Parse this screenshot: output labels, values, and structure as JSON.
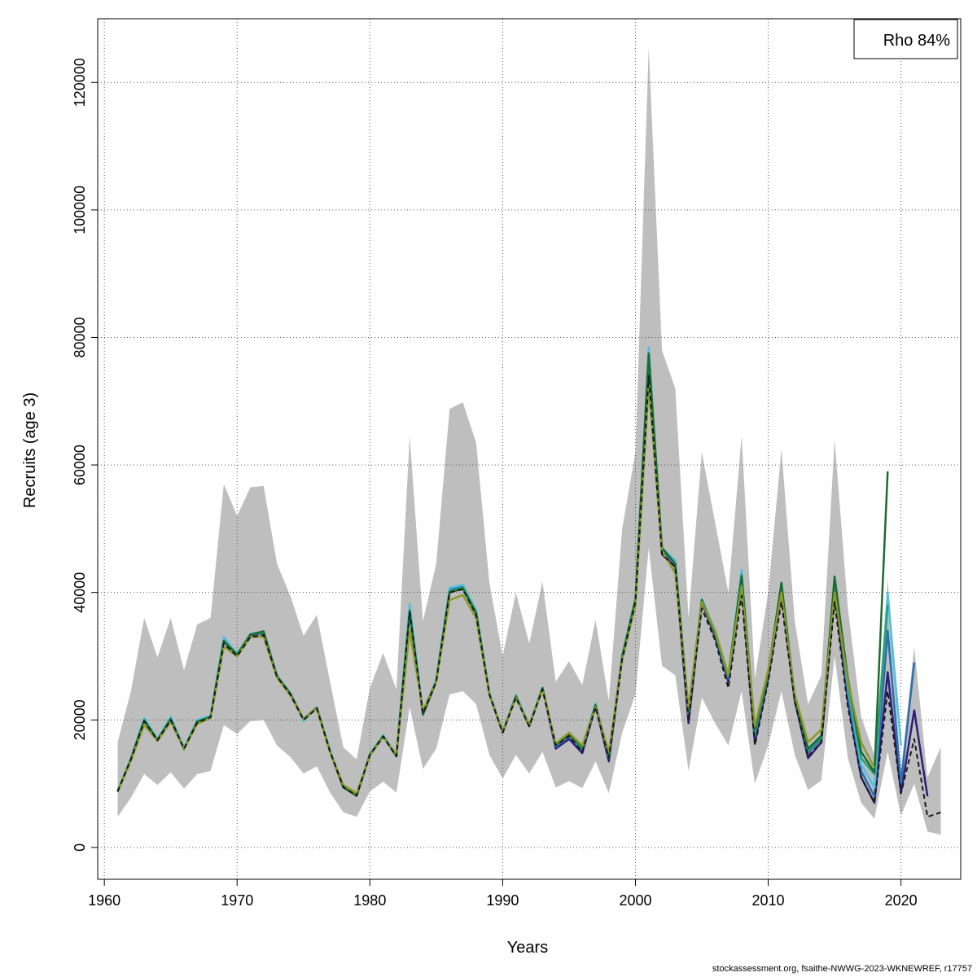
{
  "chart_data": {
    "type": "line",
    "title": "",
    "xlabel": "Years",
    "ylabel": "Recruits (age 3)",
    "xlim": [
      1959.5,
      2024.5
    ],
    "ylim": [
      -5000,
      130000
    ],
    "x_ticks": [
      1960,
      1970,
      1980,
      1990,
      2000,
      2010,
      2020
    ],
    "y_ticks": [
      0,
      20000,
      40000,
      60000,
      80000,
      100000,
      120000
    ],
    "grid": true,
    "legend": {
      "position": "top-right",
      "text": "Rho 84%"
    },
    "confidence_band": {
      "x": [
        1961,
        1962,
        1963,
        1964,
        1965,
        1966,
        1967,
        1968,
        1969,
        1970,
        1971,
        1972,
        1973,
        1974,
        1975,
        1976,
        1977,
        1978,
        1979,
        1980,
        1981,
        1982,
        1983,
        1984,
        1985,
        1986,
        1987,
        1988,
        1989,
        1990,
        1991,
        1992,
        1993,
        1994,
        1995,
        1996,
        1997,
        1998,
        1999,
        2000,
        2001,
        2002,
        2003,
        2004,
        2005,
        2006,
        2007,
        2008,
        2009,
        2010,
        2011,
        2012,
        2013,
        2014,
        2015,
        2016,
        2017,
        2018,
        2019,
        2020,
        2021,
        2022,
        2023
      ],
      "lower": [
        4800,
        7800,
        11500,
        9800,
        11800,
        9200,
        11500,
        12000,
        19200,
        17800,
        19800,
        20000,
        16000,
        14200,
        11600,
        12700,
        8600,
        5500,
        4800,
        8800,
        10300,
        8600,
        22000,
        12300,
        15500,
        24000,
        24500,
        22500,
        14500,
        10800,
        14500,
        11600,
        15000,
        9400,
        10400,
        9300,
        13500,
        8500,
        18000,
        24000,
        47000,
        28500,
        27000,
        12000,
        23500,
        19500,
        16000,
        24500,
        10000,
        16000,
        24500,
        14500,
        9000,
        10500,
        30000,
        14000,
        7000,
        4500,
        15000,
        5000,
        10000,
        2500,
        2000
      ],
      "upper": [
        16500,
        24500,
        36000,
        29800,
        36000,
        27800,
        35000,
        36000,
        57000,
        52000,
        56500,
        56700,
        44500,
        39500,
        33200,
        36500,
        26000,
        15700,
        13800,
        25000,
        30500,
        24800,
        64500,
        35500,
        44500,
        68800,
        69800,
        63500,
        41500,
        30000,
        40000,
        32000,
        41700,
        26000,
        29200,
        25500,
        35700,
        23000,
        50000,
        62000,
        125500,
        78000,
        72000,
        36000,
        62000,
        51000,
        40000,
        64500,
        26500,
        40000,
        62500,
        35500,
        22500,
        27000,
        64000,
        37500,
        20500,
        14500,
        42000,
        12000,
        31500,
        11000,
        15700
      ]
    },
    "series": [
      {
        "color": "#1a1a1a",
        "dash": "6,4",
        "x": [
          1961,
          1962,
          1963,
          1964,
          1965,
          1966,
          1967,
          1968,
          1969,
          1970,
          1971,
          1972,
          1973,
          1974,
          1975,
          1976,
          1977,
          1978,
          1979,
          1980,
          1981,
          1982,
          1983,
          1984,
          1985,
          1986,
          1987,
          1988,
          1989,
          1990,
          1991,
          1992,
          1993,
          1994,
          1995,
          1996,
          1997,
          1998,
          1999,
          2000,
          2001,
          2002,
          2003,
          2004,
          2005,
          2006,
          2007,
          2008,
          2009,
          2010,
          2011,
          2012,
          2013,
          2014,
          2015,
          2016,
          2017,
          2018,
          2019,
          2020,
          2021,
          2022,
          2023
        ],
        "values": [
          8800,
          13800,
          19800,
          16800,
          20000,
          15500,
          19600,
          20400,
          32000,
          30000,
          33000,
          33300,
          26800,
          24000,
          20000,
          21800,
          15000,
          9500,
          8100,
          14500,
          17400,
          14300,
          37000,
          21000,
          26000,
          40000,
          40500,
          36500,
          24000,
          18000,
          23500,
          19000,
          24800,
          16000,
          17500,
          15000,
          22000,
          14000,
          29500,
          38500,
          74000,
          46000,
          44000,
          20000,
          37500,
          32500,
          25000,
          39500,
          16000,
          26000,
          38500,
          22800,
          14300,
          16500,
          38500,
          22000,
          11000,
          7000,
          24500,
          8500,
          17000,
          4800,
          5500
        ]
      },
      {
        "color": "#2e1e7a",
        "x": [
          1961,
          1962,
          1963,
          1964,
          1965,
          1966,
          1967,
          1968,
          1969,
          1970,
          1971,
          1972,
          1973,
          1974,
          1975,
          1976,
          1977,
          1978,
          1979,
          1980,
          1981,
          1982,
          1983,
          1984,
          1985,
          1986,
          1987,
          1988,
          1989,
          1990,
          1991,
          1992,
          1993,
          1994,
          1995,
          1996,
          1997,
          1998,
          1999,
          2000,
          2001,
          2002,
          2003,
          2004,
          2005,
          2006,
          2007,
          2008,
          2009,
          2010,
          2011,
          2012,
          2013,
          2014,
          2015,
          2016,
          2017,
          2018,
          2019,
          2020,
          2021,
          2022
        ],
        "values": [
          8800,
          13900,
          19900,
          16900,
          20100,
          15500,
          19700,
          20500,
          32300,
          30200,
          33300,
          33600,
          26900,
          24100,
          20100,
          21900,
          15100,
          9500,
          8100,
          14600,
          17500,
          14300,
          37500,
          21000,
          26200,
          40300,
          40800,
          36800,
          24100,
          18100,
          23700,
          19100,
          25000,
          15500,
          17000,
          14800,
          22200,
          13500,
          29800,
          38800,
          76000,
          46000,
          44000,
          19500,
          38500,
          33000,
          26000,
          41000,
          16500,
          26500,
          40000,
          23000,
          14000,
          16500,
          40000,
          23000,
          11000,
          7000,
          27500,
          8500,
          21500,
          8000
        ]
      },
      {
        "color": "#2a6fb0",
        "x": [
          1961,
          1962,
          1963,
          1964,
          1965,
          1966,
          1967,
          1968,
          1969,
          1970,
          1971,
          1972,
          1973,
          1974,
          1975,
          1976,
          1977,
          1978,
          1979,
          1980,
          1981,
          1982,
          1983,
          1984,
          1985,
          1986,
          1987,
          1988,
          1989,
          1990,
          1991,
          1992,
          1993,
          1994,
          1995,
          1996,
          1997,
          1998,
          1999,
          2000,
          2001,
          2002,
          2003,
          2004,
          2005,
          2006,
          2007,
          2008,
          2009,
          2010,
          2011,
          2012,
          2013,
          2014,
          2015,
          2016,
          2017,
          2018,
          2019,
          2020,
          2021
        ],
        "values": [
          8800,
          13900,
          20000,
          16900,
          20200,
          15500,
          19800,
          20500,
          32600,
          30300,
          33400,
          33700,
          26900,
          24200,
          20000,
          22000,
          15100,
          9500,
          8200,
          14600,
          17600,
          14400,
          37800,
          21000,
          26300,
          40500,
          41000,
          37000,
          24200,
          18100,
          23800,
          19200,
          25000,
          15800,
          17400,
          15200,
          22400,
          14000,
          30000,
          39000,
          77500,
          46500,
          44500,
          20500,
          38800,
          33500,
          26500,
          42500,
          17500,
          27000,
          41000,
          23500,
          14800,
          17000,
          41500,
          24000,
          12000,
          8000,
          34000,
          10000,
          29000
        ]
      },
      {
        "color": "#4fc0e0",
        "x": [
          1961,
          1962,
          1963,
          1964,
          1965,
          1966,
          1967,
          1968,
          1969,
          1970,
          1971,
          1972,
          1973,
          1974,
          1975,
          1976,
          1977,
          1978,
          1979,
          1980,
          1981,
          1982,
          1983,
          1984,
          1985,
          1986,
          1987,
          1988,
          1989,
          1990,
          1991,
          1992,
          1993,
          1994,
          1995,
          1996,
          1997,
          1998,
          1999,
          2000,
          2001,
          2002,
          2003,
          2004,
          2005,
          2006,
          2007,
          2008,
          2009,
          2010,
          2011,
          2012,
          2013,
          2014,
          2015,
          2016,
          2017,
          2018,
          2019,
          2020
        ],
        "values": [
          8900,
          14000,
          20300,
          17000,
          20500,
          15600,
          20000,
          20700,
          33000,
          30400,
          33500,
          33800,
          27000,
          24300,
          19800,
          22000,
          15200,
          9600,
          8200,
          14700,
          17600,
          14500,
          38200,
          21200,
          26400,
          40700,
          41200,
          37200,
          24300,
          18200,
          23900,
          19300,
          25100,
          16000,
          17800,
          15600,
          22600,
          14300,
          30200,
          39200,
          78500,
          47000,
          45000,
          21000,
          39000,
          34000,
          27000,
          43500,
          18000,
          27500,
          41500,
          24000,
          15500,
          17500,
          42500,
          25000,
          13000,
          9500,
          40000,
          16000
        ]
      },
      {
        "color": "#2a9d6e",
        "x": [
          1961,
          1962,
          1963,
          1964,
          1965,
          1966,
          1967,
          1968,
          1969,
          1970,
          1971,
          1972,
          1973,
          1974,
          1975,
          1976,
          1977,
          1978,
          1979,
          1980,
          1981,
          1982,
          1983,
          1984,
          1985,
          1986,
          1987,
          1988,
          1989,
          1990,
          1991,
          1992,
          1993,
          1994,
          1995,
          1996,
          1997,
          1998,
          1999,
          2000,
          2001,
          2002,
          2003,
          2004,
          2005,
          2006,
          2007,
          2008,
          2009,
          2010,
          2011,
          2012,
          2013,
          2014,
          2015,
          2016,
          2017,
          2018,
          2019
        ],
        "values": [
          8800,
          13900,
          20000,
          16900,
          20200,
          15500,
          19800,
          20500,
          32400,
          30300,
          33400,
          33700,
          26900,
          24200,
          20100,
          21900,
          15100,
          9500,
          8200,
          14600,
          17500,
          14400,
          37200,
          21000,
          26200,
          40200,
          40800,
          36900,
          24100,
          18100,
          23800,
          19100,
          25000,
          16000,
          17600,
          15500,
          22400,
          14200,
          30000,
          39000,
          77000,
          47000,
          44500,
          21000,
          38800,
          33500,
          26800,
          42800,
          18000,
          27200,
          41200,
          23500,
          15200,
          17200,
          42000,
          25500,
          14000,
          11500,
          38000
        ]
      },
      {
        "color": "#1c6b30",
        "x": [
          1961,
          1962,
          1963,
          1964,
          1965,
          1966,
          1967,
          1968,
          1969,
          1970,
          1971,
          1972,
          1973,
          1974,
          1975,
          1976,
          1977,
          1978,
          1979,
          1980,
          1981,
          1982,
          1983,
          1984,
          1985,
          1986,
          1987,
          1988,
          1989,
          1990,
          1991,
          1992,
          1993,
          1994,
          1995,
          1996,
          1997,
          1998,
          1999,
          2000,
          2001,
          2002,
          2003,
          2004,
          2005,
          2006,
          2007,
          2008,
          2009,
          2010,
          2011,
          2012,
          2013,
          2014,
          2015,
          2016,
          2017,
          2018,
          2019
        ],
        "values": [
          8700,
          13800,
          19900,
          16800,
          20100,
          15400,
          19700,
          20400,
          32400,
          30200,
          33400,
          33900,
          26800,
          24100,
          20200,
          21900,
          15000,
          9400,
          8100,
          14500,
          17400,
          14300,
          36800,
          20800,
          26000,
          40000,
          40600,
          36700,
          24000,
          18000,
          23700,
          19000,
          25000,
          16100,
          17700,
          15800,
          22300,
          14400,
          29900,
          38800,
          77500,
          47000,
          44500,
          21500,
          38800,
          33800,
          27000,
          42500,
          18500,
          27500,
          41500,
          23500,
          15500,
          17500,
          42500,
          26500,
          15000,
          11800,
          59000
        ]
      },
      {
        "color": "#8c9a28",
        "x": [
          1961,
          1962,
          1963,
          1964,
          1965,
          1966,
          1967,
          1968,
          1969,
          1970,
          1971,
          1972,
          1973,
          1974,
          1975,
          1976,
          1977,
          1978,
          1979,
          1980,
          1981,
          1982,
          1983,
          1984,
          1985,
          1986,
          1987,
          1988,
          1989,
          1990,
          1991,
          1992,
          1993,
          1994,
          1995,
          1996,
          1997,
          1998,
          1999,
          2000,
          2001,
          2002,
          2003,
          2004,
          2005,
          2006,
          2007,
          2008,
          2009,
          2010,
          2011,
          2012,
          2013,
          2014,
          2015,
          2016,
          2017,
          2018
        ],
        "values": [
          8700,
          13600,
          19200,
          16700,
          19700,
          15500,
          19400,
          20300,
          31500,
          30000,
          33000,
          33100,
          26600,
          23900,
          20200,
          21800,
          14900,
          9800,
          8500,
          14400,
          17300,
          14600,
          34000,
          21500,
          26000,
          38800,
          39600,
          36000,
          24000,
          18200,
          23500,
          19300,
          24700,
          16300,
          18000,
          16000,
          22000,
          15000,
          29500,
          38000,
          72500,
          46500,
          43000,
          21800,
          38500,
          34000,
          27000,
          41000,
          19000,
          27800,
          40000,
          24000,
          16500,
          18500,
          40000,
          26000,
          16500,
          12500
        ]
      }
    ]
  },
  "footer": "stockassessment.org, fsaithe-NWWG-2023-WKNEWREF, r17757"
}
